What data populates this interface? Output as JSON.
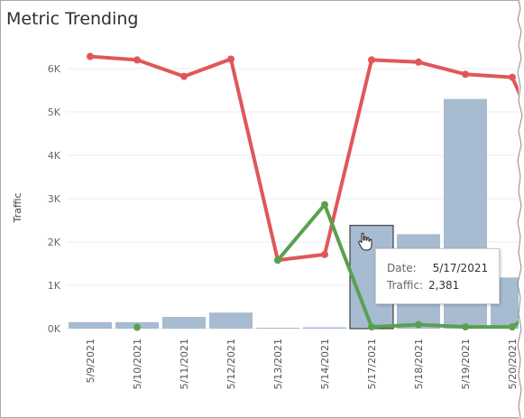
{
  "title": "Metric Trending",
  "colors": {
    "bar": "#a7bbd1",
    "bar_highlight_border": "#222222",
    "line_primary": "#e05759",
    "line_secondary": "#59a14f",
    "grid": "#eeeeee"
  },
  "tooltip": {
    "date_label": "Date:",
    "date_value": "5/17/2021",
    "traffic_label": "Traffic:",
    "traffic_value": "2,381"
  },
  "chart_data": {
    "type": "bar",
    "ylabel": "Traffic",
    "xlabel": "",
    "ylim": [
      0,
      6600
    ],
    "yticks": [
      {
        "value": 0,
        "label": "0K"
      },
      {
        "value": 1000,
        "label": "1K"
      },
      {
        "value": 2000,
        "label": "2K"
      },
      {
        "value": 3000,
        "label": "3K"
      },
      {
        "value": 4000,
        "label": "4K"
      },
      {
        "value": 5000,
        "label": "5K"
      },
      {
        "value": 6000,
        "label": "6K"
      }
    ],
    "categories": [
      "5/9/2021",
      "5/10/2021",
      "5/11/2021",
      "5/12/2021",
      "5/13/2021",
      "5/14/2021",
      "5/17/2021",
      "5/18/2021",
      "5/19/2021",
      "5/20/2021"
    ],
    "highlighted_category": "5/17/2021",
    "bars": [
      150,
      150,
      270,
      370,
      20,
      30,
      2381,
      2180,
      5300,
      1180
    ],
    "lines": [
      {
        "color": "red",
        "values": [
          6280,
          6200,
          5820,
          6220,
          1580,
          1710,
          6200,
          6150,
          5870,
          5800
        ]
      },
      {
        "color": "green",
        "values": [
          null,
          30,
          null,
          null,
          1580,
          2860,
          40,
          90,
          40,
          40
        ]
      }
    ]
  }
}
